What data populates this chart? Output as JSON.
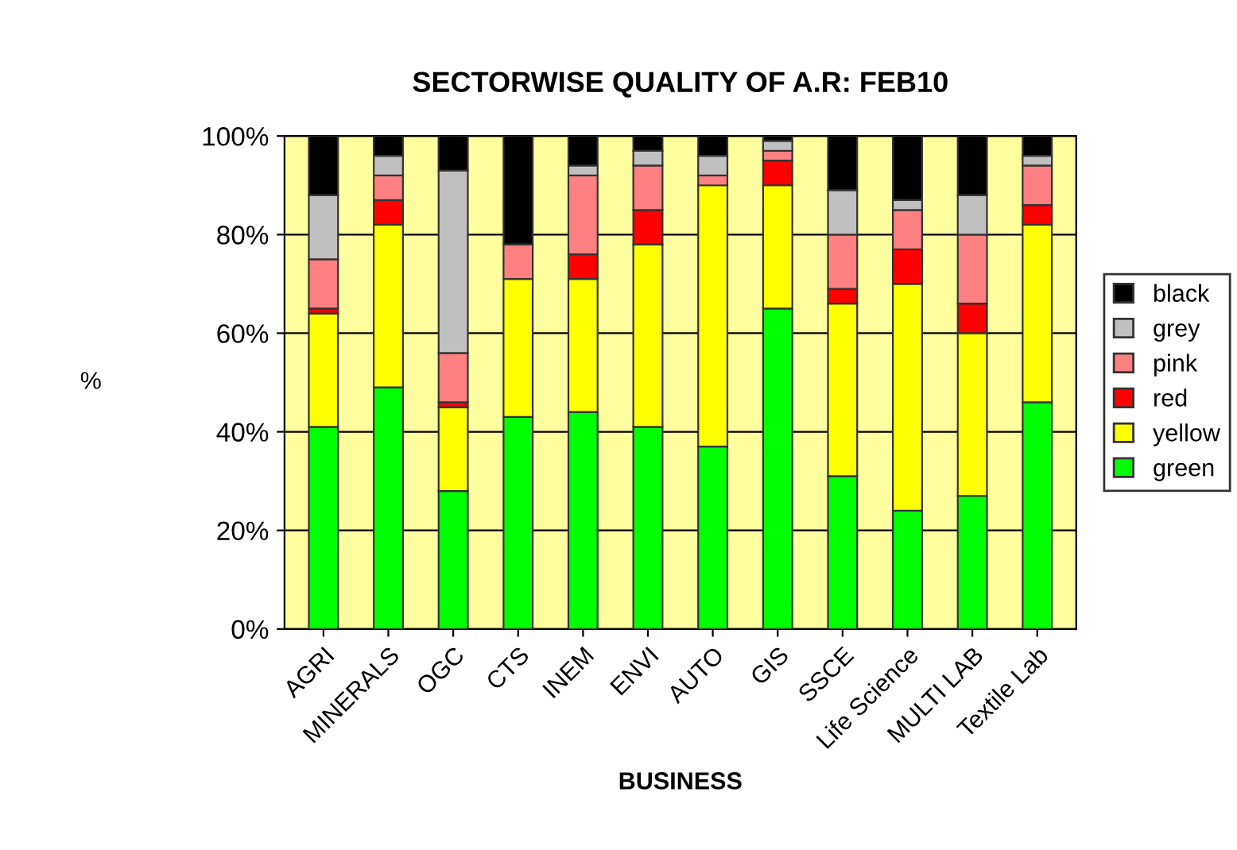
{
  "chart_data": {
    "type": "bar",
    "stacked": true,
    "title": "SECTORWISE QUALITY OF A.R: FEB10",
    "xlabel": "BUSINESS",
    "ylabel": "%",
    "categories": [
      "AGRI",
      "MINERALS",
      "OGC",
      "CTS",
      "INEM",
      "ENVI",
      "AUTO",
      "GIS",
      "SSCE",
      "Life Science",
      "MULTI LAB",
      "Textile Lab"
    ],
    "series": [
      {
        "name": "green",
        "color": "#00ff00",
        "values": [
          41,
          49,
          28,
          43,
          44,
          41,
          37,
          65,
          31,
          24,
          27,
          46
        ]
      },
      {
        "name": "yellow",
        "color": "#ffff00",
        "values": [
          23,
          33,
          17,
          28,
          27,
          37,
          53,
          25,
          35,
          46,
          33,
          36
        ]
      },
      {
        "name": "red",
        "color": "#ff0000",
        "values": [
          1,
          5,
          1,
          0,
          5,
          7,
          0,
          5,
          3,
          7,
          6,
          4
        ]
      },
      {
        "name": "pink",
        "color": "#ff8080",
        "values": [
          10,
          5,
          10,
          7,
          16,
          9,
          2,
          2,
          11,
          8,
          14,
          8
        ]
      },
      {
        "name": "grey",
        "color": "#c0c0c0",
        "values": [
          13,
          4,
          37,
          0,
          2,
          3,
          4,
          2,
          9,
          2,
          8,
          2
        ]
      },
      {
        "name": "black",
        "color": "#000000",
        "values": [
          12,
          4,
          7,
          22,
          6,
          3,
          4,
          1,
          11,
          13,
          12,
          4
        ]
      }
    ],
    "ylim": [
      0,
      100
    ],
    "yticks": [
      {
        "value": 0,
        "label": "0%"
      },
      {
        "value": 20,
        "label": "20%"
      },
      {
        "value": 40,
        "label": "40%"
      },
      {
        "value": 60,
        "label": "60%"
      },
      {
        "value": 80,
        "label": "80%"
      },
      {
        "value": 100,
        "label": "100%"
      }
    ],
    "grid": "y",
    "legend": "right"
  }
}
